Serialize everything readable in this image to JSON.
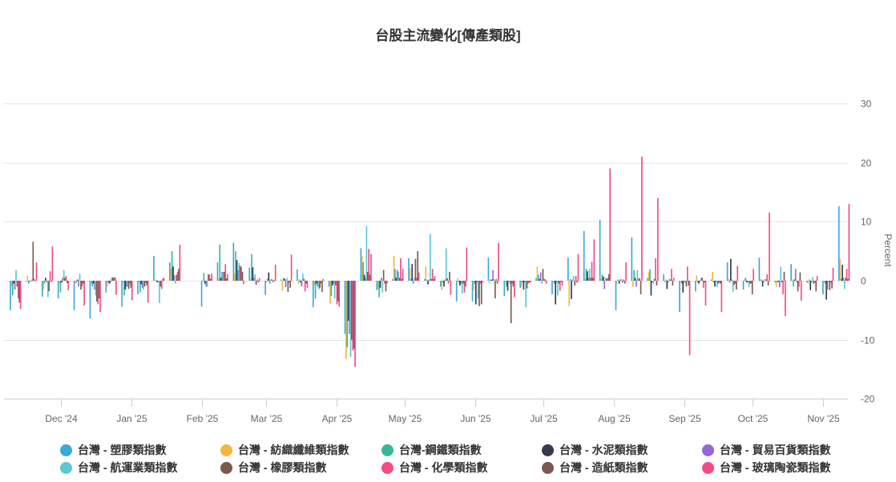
{
  "title": "台股主流變化[傳產類股]",
  "chart_data": {
    "type": "bar",
    "title": "台股主流變化[傳產類股]",
    "xlabel": "",
    "ylabel": "Percent",
    "ylim": [
      -20,
      30
    ],
    "yticks": [
      30,
      20,
      10,
      0,
      -10,
      -20
    ],
    "grid": true,
    "legend_position": "bottom",
    "x_tick_labels": [
      {
        "label": "Dec '24",
        "date": "2024-12-01"
      },
      {
        "label": "Jan '25",
        "date": "2025-01-01"
      },
      {
        "label": "Feb '25",
        "date": "2025-02-01"
      },
      {
        "label": "Mar '25",
        "date": "2025-03-01"
      },
      {
        "label": "Apr '25",
        "date": "2025-04-01"
      },
      {
        "label": "May '25",
        "date": "2025-05-01"
      },
      {
        "label": "Jun '25",
        "date": "2025-06-01"
      },
      {
        "label": "Jul '25",
        "date": "2025-07-01"
      },
      {
        "label": "Aug '25",
        "date": "2025-08-01"
      },
      {
        "label": "Sep '25",
        "date": "2025-09-01"
      },
      {
        "label": "Oct '25",
        "date": "2025-10-01"
      },
      {
        "label": "Nov '25",
        "date": "2025-11-01"
      }
    ],
    "x": [
      "2024-11-11",
      "2024-11-18",
      "2024-11-25",
      "2024-12-02",
      "2024-12-09",
      "2024-12-16",
      "2024-12-23",
      "2024-12-30",
      "2025-01-06",
      "2025-01-13",
      "2025-01-20",
      "2025-01-27",
      "2025-02-03",
      "2025-02-10",
      "2025-02-17",
      "2025-02-24",
      "2025-03-03",
      "2025-03-10",
      "2025-03-17",
      "2025-03-24",
      "2025-03-31",
      "2025-04-07",
      "2025-04-14",
      "2025-04-21",
      "2025-04-28",
      "2025-05-05",
      "2025-05-12",
      "2025-05-19",
      "2025-05-26",
      "2025-06-02",
      "2025-06-09",
      "2025-06-16",
      "2025-06-23",
      "2025-06-30",
      "2025-07-07",
      "2025-07-14",
      "2025-07-21",
      "2025-07-28",
      "2025-08-04",
      "2025-08-11",
      "2025-08-18",
      "2025-08-25",
      "2025-09-01",
      "2025-09-08",
      "2025-09-15",
      "2025-09-22",
      "2025-09-29",
      "2025-10-06",
      "2025-10-13",
      "2025-10-20",
      "2025-10-27",
      "2025-11-03",
      "2025-11-10"
    ],
    "series_names": [
      "台灣 - 塑膠類指數",
      "台灣 - 紡織纖維類指數",
      "台灣-鋼鐵類指數",
      "台灣 - 水泥類指數",
      "台灣 - 貿易百貨類指數",
      "台灣 - 航運業類指數",
      "台灣 - 橡膠類指數",
      "台灣 - 化學類指數",
      "台灣 - 造紙類指數",
      "台灣 - 玻璃陶瓷類指數"
    ],
    "series_colors": [
      "#3aa8da",
      "#f3b73f",
      "#35b899",
      "#353a4d",
      "#9468d8",
      "#5cc7d6",
      "#7b5a4d",
      "#f34b86",
      "#7b5a4d",
      "#f34b86"
    ],
    "values_by_week": [
      [
        -5,
        -1,
        -2.5,
        -0.5,
        -1.5,
        1.8,
        -1,
        -3,
        -3.7,
        -4.8
      ],
      [
        0,
        0.8,
        -0.5,
        0,
        0,
        0.2,
        6.6,
        0.3,
        0,
        3.1
      ],
      [
        -2.7,
        -1.5,
        -0.5,
        0.5,
        -0.3,
        -2.8,
        -1.8,
        1.6,
        -0.2,
        5.8
      ],
      [
        -3,
        -0.5,
        -2,
        -0.3,
        0.5,
        1.8,
        0.5,
        0.8,
        -0.4,
        -1.6
      ],
      [
        -5,
        -0.5,
        -0.3,
        0.2,
        -1,
        1.2,
        -1.5,
        -1,
        -0.5,
        -4.2
      ],
      [
        -6.4,
        -0.5,
        -1,
        -0.5,
        -1.5,
        -2.5,
        -3.5,
        -4,
        -3,
        -5.3
      ],
      [
        -2,
        -1,
        -0.3,
        -0.5,
        -0.3,
        0.5,
        0.6,
        0.4,
        0.6,
        -2.4
      ],
      [
        -4.4,
        -0.3,
        -2.5,
        -1.5,
        -1,
        -1,
        -1.4,
        -0.5,
        -1.2,
        -3.3
      ],
      [
        -2.3,
        -0.3,
        -2,
        -0.6,
        -1.2,
        -1.5,
        -1,
        -0.4,
        -0.8,
        -3.7
      ],
      [
        4.2,
        0.2,
        0.1,
        -0.3,
        -0.2,
        -3.8,
        -1,
        -1.4,
        0.3,
        0.5
      ],
      [
        3.1,
        2,
        5,
        2.4,
        0.9,
        -0.5,
        1,
        1.5,
        2,
        6.1
      ],
      null,
      [
        -4.4,
        0.1,
        1.3,
        -0.5,
        -1,
        -1,
        1.1,
        1,
        0.3,
        1.2
      ],
      [
        3.1,
        0.4,
        6.1,
        0.5,
        1.5,
        1.5,
        1.5,
        2.8,
        0.4,
        1.1
      ],
      [
        6.4,
        1.2,
        5,
        3.5,
        1.8,
        3,
        2.5,
        2.3,
        1.5,
        -0.6
      ],
      [
        2.2,
        0.3,
        4.5,
        2.3,
        0.5,
        1.1,
        -0.7,
        0.2,
        -0.3,
        0.4
      ],
      [
        -2.4,
        -0.3,
        0.3,
        1.4,
        -0.5,
        0.3,
        0.2,
        -0.3,
        0.1,
        2.7
      ],
      [
        0.2,
        -1.7,
        0.5,
        0.3,
        -1.1,
        0.5,
        -1.9,
        -0.3,
        -1.2,
        4.4
      ],
      [
        1.9,
        -0.5,
        0.2,
        -0.3,
        -1,
        1.2,
        0.3,
        -1.8,
        -0.5,
        -1.2
      ],
      [
        -4.5,
        -0.8,
        -3,
        -0.5,
        -1,
        -1.5,
        -1.2,
        -0.5,
        -1.9,
        0.3
      ],
      [
        -1,
        -3.9,
        -2.6,
        -0.8,
        -0.5,
        -3,
        -0.8,
        -4,
        -3.5,
        -4.4
      ],
      [
        -9,
        -13.3,
        -11.3,
        -6.8,
        -9,
        -12.9,
        -10,
        -11.8,
        -11.5,
        -14.6
      ],
      [
        5.5,
        4.2,
        3.1,
        1,
        0.5,
        9.3,
        1.5,
        5.4,
        1,
        4.5
      ],
      [
        -1.6,
        -1.4,
        -2.8,
        -1.2,
        0.5,
        -2,
        1.8,
        -0.5,
        -1.8,
        -0.5
      ],
      [
        0.3,
        4.2,
        2,
        0.5,
        1.8,
        1.5,
        0.5,
        3.8,
        0.3,
        2
      ],
      [
        3.8,
        2.2,
        0.3,
        2.8,
        -0.5,
        0.5,
        3.7,
        0.5,
        5,
        1.4
      ],
      [
        0.3,
        2.4,
        0.2,
        -0.6,
        0.2,
        7.9,
        0.3,
        2,
        0.3,
        0.8
      ],
      [
        -1,
        -1.6,
        -0.3,
        -1,
        0.2,
        5.5,
        0.4,
        -0.5,
        1.5,
        -2.4
      ],
      [
        -3.5,
        0.4,
        -0.3,
        -0.8,
        -0.5,
        -2.2,
        -0.5,
        -2,
        -1,
        5.6
      ],
      [
        -3.5,
        -1.6,
        -0.5,
        -4,
        -0.3,
        -3,
        -4.3,
        -0.5,
        -4,
        -0.3
      ],
      [
        3.9,
        -0.5,
        0.2,
        0.2,
        1.8,
        0.3,
        -3,
        0.3,
        -0.5,
        6.4
      ],
      [
        -2.6,
        -0.3,
        -1,
        -1.7,
        -0.2,
        -0.5,
        -7.2,
        -0.5,
        -1,
        -2.8
      ],
      [
        -1.2,
        -1,
        -0.3,
        -1.5,
        -0.3,
        -4.5,
        -1.3,
        -0.5,
        -0.3,
        -0.3
      ],
      [
        0.5,
        2.4,
        1,
        0.3,
        1.4,
        -0.5,
        2,
        0.3,
        0.2,
        -0.5
      ],
      [
        -2.3,
        -0.3,
        -0.5,
        -4,
        -0.3,
        -2.5,
        -0.5,
        -1.7,
        -0.2,
        -0.8
      ],
      [
        3.9,
        -4.3,
        0.3,
        -3.1,
        0.2,
        0.8,
        -0.8,
        0.8,
        -0.3,
        4.5
      ],
      [
        8.4,
        0.3,
        2,
        1.6,
        0.5,
        2,
        0.5,
        3.2,
        0.5,
        7
      ],
      [
        10.3,
        0.3,
        1,
        0.7,
        -1.4,
        0.5,
        0.3,
        0.5,
        1.1,
        19
      ],
      [
        -5,
        -0.5,
        0.2,
        -0.5,
        0.2,
        0.3,
        -0.3,
        0.2,
        -0.5,
        3.1
      ],
      [
        7.3,
        -1,
        1.8,
        0.5,
        -1,
        1.8,
        0.3,
        0.5,
        -2.3,
        21
      ],
      [
        0.5,
        1.5,
        1.9,
        -2.5,
        -0.3,
        -0.5,
        0.3,
        3.8,
        -0.8,
        14
      ],
      [
        1.1,
        -0.3,
        0.2,
        -1.4,
        -0.3,
        0.3,
        0.2,
        2,
        -0.8,
        0.5
      ],
      [
        -5.3,
        -0.3,
        -0.5,
        -2,
        -0.3,
        -0.3,
        -1,
        2.4,
        -0.8,
        -12.6
      ],
      [
        -1.8,
        0.9,
        -0.3,
        -0.5,
        -0.2,
        0.5,
        0.5,
        -1.2,
        -0.3,
        -4.2
      ],
      [
        0.2,
        1.5,
        -0.3,
        -1,
        -0.2,
        -1.1,
        -0.5,
        -0.3,
        -0.5,
        -5.3
      ],
      [
        3.1,
        0.3,
        -0.3,
        3.7,
        0.2,
        -1.9,
        -0.7,
        -0.5,
        -1.5,
        2.5
      ],
      [
        -1.5,
        0.2,
        0.5,
        -0.3,
        -0.3,
        -1.1,
        -0.5,
        -0.5,
        -2.3,
        2
      ],
      [
        3.9,
        0.2,
        0.2,
        -1,
        -0.2,
        0.3,
        0.2,
        1.1,
        -0.8,
        11.5
      ],
      [
        -0.3,
        -1,
        -0.3,
        -0.2,
        -1.1,
        2.4,
        -0.3,
        -2.3,
        1.5,
        -6
      ],
      [
        2.8,
        0.2,
        -1,
        0.2,
        2,
        -0.3,
        -1.8,
        -1,
        1.4,
        -3.4
      ],
      [
        -0.3,
        -0.5,
        0.2,
        -1.6,
        -0.3,
        0.6,
        -0.5,
        -0.3,
        -1.8,
        0.8
      ],
      [
        -2.3,
        -0.3,
        -0.5,
        -3.2,
        -1.5,
        -0.3,
        -1.6,
        -0.3,
        -1.3,
        2.2
      ],
      [
        12.6,
        3.7,
        0.3,
        2.7,
        0.5,
        -1.4,
        0.5,
        2,
        0.3,
        13
      ]
    ]
  },
  "legend": {
    "items": [
      {
        "label": "台灣 - 塑膠類指數",
        "color": "#3aa8da"
      },
      {
        "label": "台灣 - 紡織纖維類指數",
        "color": "#f3b73f"
      },
      {
        "label": "台灣-鋼鐵類指數",
        "color": "#35b899"
      },
      {
        "label": "台灣 - 水泥類指數",
        "color": "#353a4d"
      },
      {
        "label": "台灣 - 貿易百貨類指數",
        "color": "#9468d8"
      },
      {
        "label": "台灣 - 航運業類指數",
        "color": "#5cc7d6"
      },
      {
        "label": "台灣 - 橡膠類指數",
        "color": "#7b5a4d"
      },
      {
        "label": "台灣 - 化學類指數",
        "color": "#f34b86"
      },
      {
        "label": "台灣 - 造紙類指數",
        "color": "#7b5a4d"
      },
      {
        "label": "台灣 - 玻璃陶瓷類指數",
        "color": "#f34b86"
      }
    ]
  }
}
